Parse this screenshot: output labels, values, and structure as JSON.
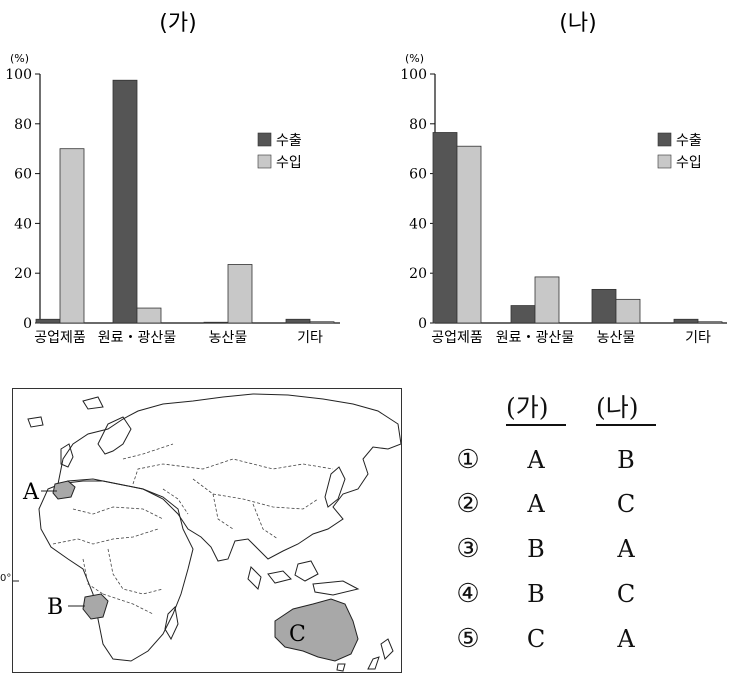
{
  "colors": {
    "export": "#555555",
    "import": "#c8c8c8"
  },
  "chart_data": [
    {
      "type": "bar",
      "title": "(가)",
      "unit_label": "(%)",
      "categories": [
        "공업제품",
        "원료・광산물",
        "농산물",
        "기타"
      ],
      "series": [
        {
          "name": "수출",
          "values": [
            1.5,
            97.5,
            0.3,
            1.5
          ]
        },
        {
          "name": "수입",
          "values": [
            70,
            6,
            23.5,
            0.5
          ]
        }
      ],
      "ylim": [
        0,
        100
      ],
      "yticks": [
        0,
        20,
        40,
        60,
        80,
        100
      ],
      "legend": "right"
    },
    {
      "type": "bar",
      "title": "(나)",
      "unit_label": "(%)",
      "categories": [
        "공업제품",
        "원료・광산물",
        "농산물",
        "기타"
      ],
      "series": [
        {
          "name": "수출",
          "values": [
            76.5,
            7,
            13.5,
            1.5
          ]
        },
        {
          "name": "수입",
          "values": [
            71,
            18.5,
            9.5,
            0.5
          ]
        }
      ],
      "ylim": [
        0,
        100
      ],
      "yticks": [
        0,
        20,
        40,
        60,
        80,
        100
      ],
      "legend": "right"
    }
  ],
  "map": {
    "labels": {
      "a": "A",
      "b": "B",
      "c": "C"
    },
    "equator_label": "0°"
  },
  "answers": {
    "headers": [
      "(가)",
      "(나)"
    ],
    "rows": [
      {
        "num": "①",
        "ga": "A",
        "na": "B"
      },
      {
        "num": "②",
        "ga": "A",
        "na": "C"
      },
      {
        "num": "③",
        "ga": "B",
        "na": "A"
      },
      {
        "num": "④",
        "ga": "B",
        "na": "C"
      },
      {
        "num": "⑤",
        "ga": "C",
        "na": "A"
      }
    ]
  }
}
